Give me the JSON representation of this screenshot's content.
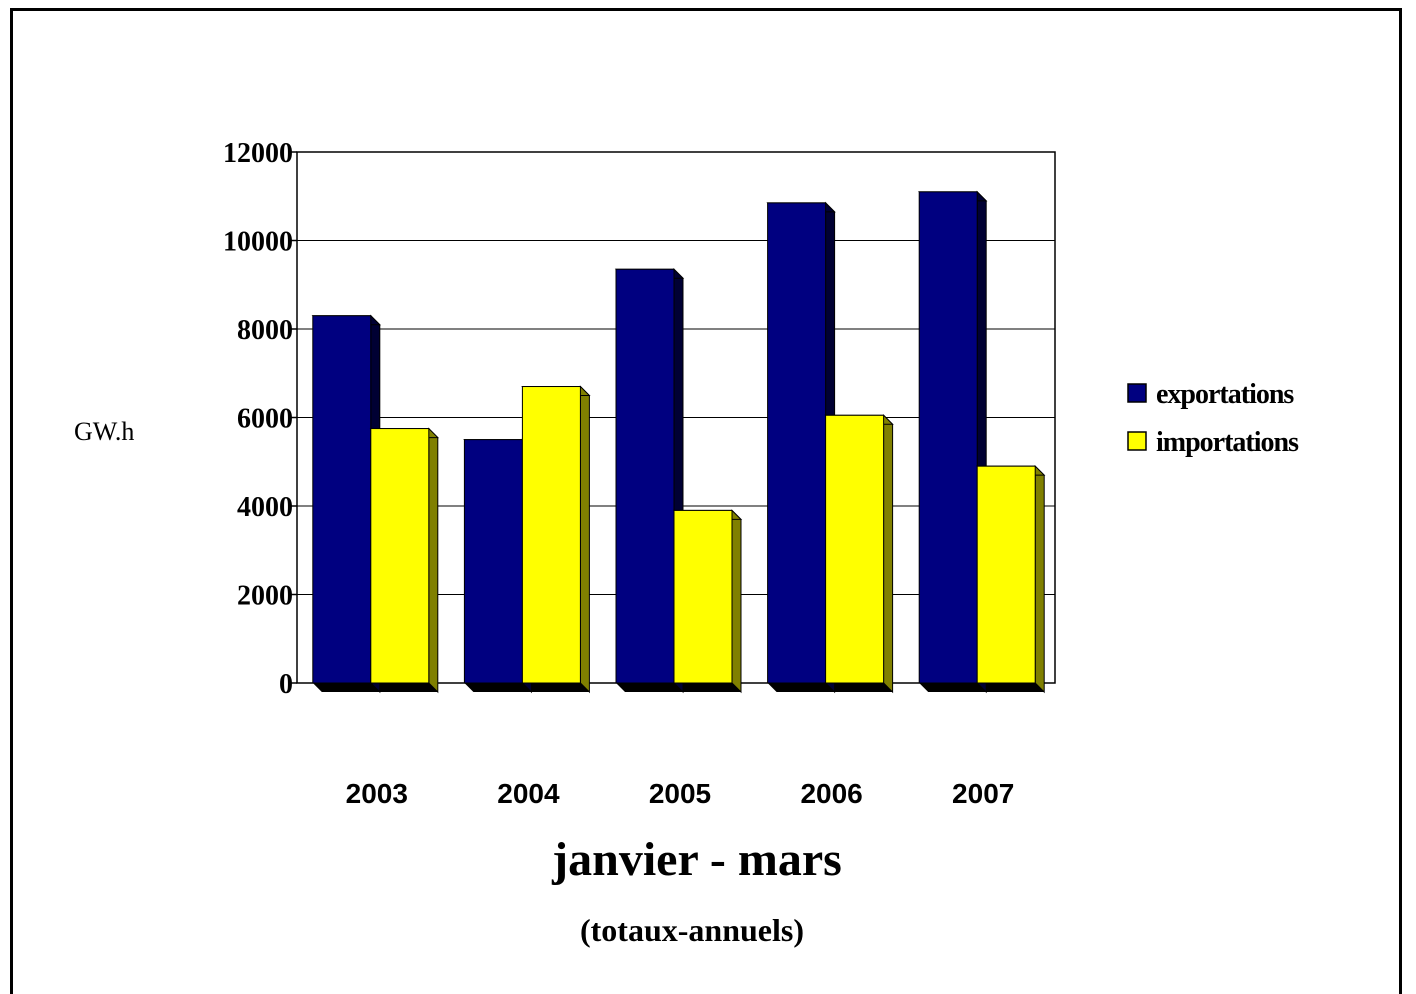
{
  "chart_data": {
    "type": "bar",
    "categories": [
      "2003",
      "2004",
      "2005",
      "2006",
      "2007"
    ],
    "series": [
      {
        "name": "exportations",
        "values": [
          8300,
          5500,
          9350,
          10850,
          11100
        ],
        "color": "#000080"
      },
      {
        "name": "importations",
        "values": [
          5750,
          6700,
          3900,
          6050,
          4900
        ],
        "color": "#ffff00"
      }
    ],
    "title": "janvier - mars",
    "subtitle": "(totaux-annuels)",
    "ylabel": "GW.h",
    "xlabel": "",
    "ylim": [
      0,
      12000
    ],
    "yticks": [
      "0",
      "2000",
      "4000",
      "6000",
      "8000",
      "10000",
      "12000"
    ],
    "grid": true,
    "legend_position": "right"
  }
}
